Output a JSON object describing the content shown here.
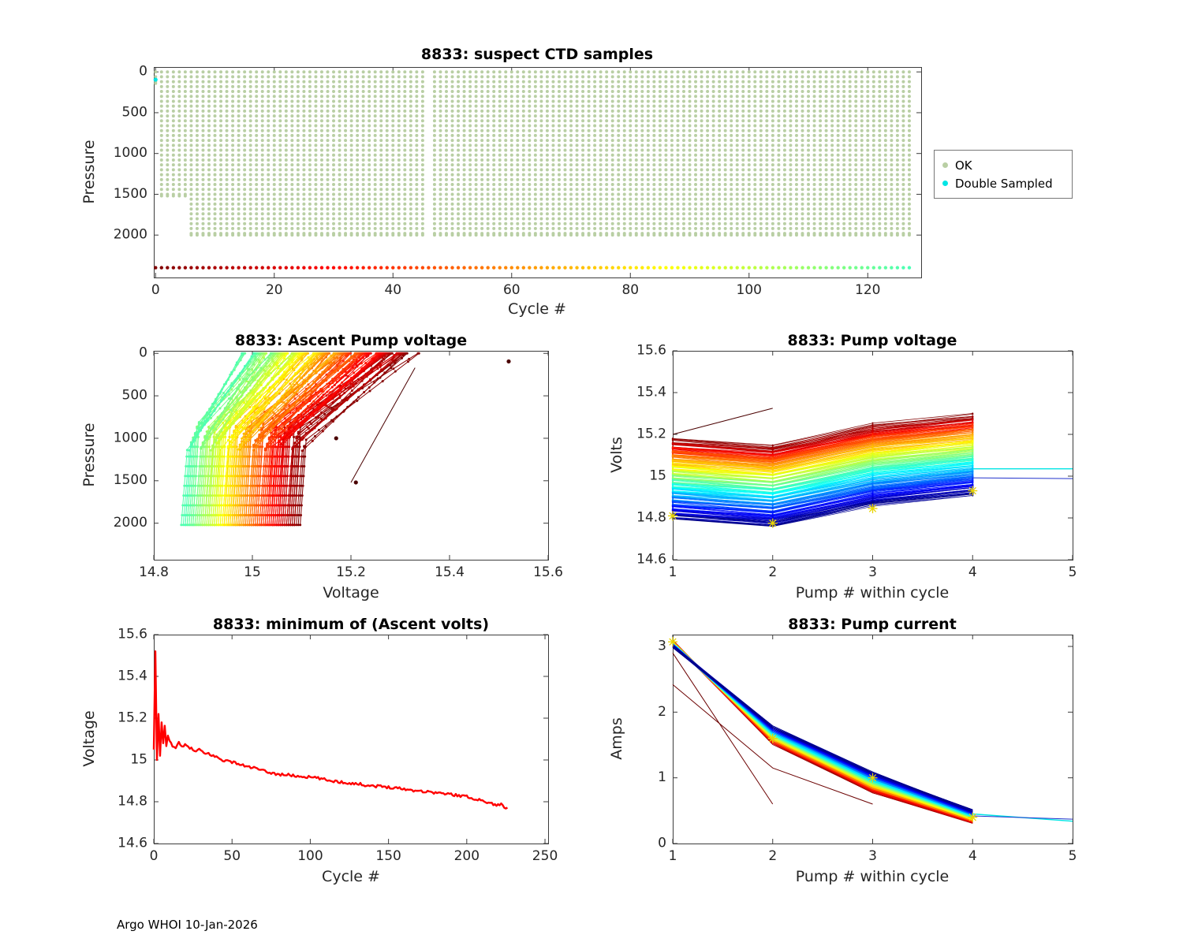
{
  "footer": "Argo WHOI 10-Jan-2026",
  "style": {
    "background": "#ffffff",
    "axis_color": "#3c3c3c",
    "tick_text_color": "#262626",
    "colormap": "jet-reversed",
    "total_cycles_for_colormap": 230
  },
  "chart_data": [
    {
      "type": "scatter",
      "title": "8833: suspect CTD samples",
      "xlabel": "Cycle #",
      "ylabel": "Pressure",
      "xlim": [
        -0.3,
        129
      ],
      "ylim_top_bottom": [
        -60,
        2520
      ],
      "xticks": [
        0,
        20,
        40,
        60,
        80,
        100,
        120
      ],
      "yticks": [
        0,
        500,
        1000,
        1500,
        2000
      ],
      "legend": {
        "position": "right-outside",
        "items": [
          {
            "label": "OK",
            "color": "#b9cfa4"
          },
          {
            "label": "Double Sampled",
            "color": "#00e5e5"
          }
        ]
      },
      "ok_profiles": {
        "cycle_start": 0,
        "cycle_end": 127,
        "missing_cycles": [
          46
        ],
        "pressure_top": 0,
        "pressure_bottom_default": 2000,
        "shallow": {
          "0": 140,
          "1": 1520,
          "2": 1520,
          "3": 1520,
          "4": 1520,
          "5": 1520
        },
        "color": "#b9cfa4"
      },
      "double_sampled_points": [
        [
          0,
          95
        ]
      ],
      "cycle_color_row": {
        "pressure": 2400,
        "cycle_start": 0,
        "cycle_end": 127
      }
    },
    {
      "type": "line",
      "title": "8833: Ascent Pump voltage",
      "xlabel": "Voltage",
      "ylabel": "Pressure",
      "xlim": [
        14.8,
        15.6
      ],
      "ylim_top_bottom": [
        -30,
        2430
      ],
      "xticks": [
        14.8,
        15,
        15.2,
        15.4,
        15.6
      ],
      "yticks": [
        0,
        500,
        1000,
        1500,
        2000
      ],
      "profile_lines": {
        "count": 128,
        "pressure_bottom": 2020,
        "knee_pressure_range": [
          800,
          1150
        ],
        "bottom_voltage_first_to_last": [
          15.09,
          14.86
        ],
        "top_voltage_first_to_last": [
          15.32,
          14.99
        ],
        "marker_pressure_step": 115
      },
      "outlier_color": "#4a0000",
      "outlier_points": [
        [
          15.52,
          95
        ],
        [
          15.21,
          1520
        ],
        [
          15.17,
          1000
        ]
      ],
      "outlier_lines": [
        [
          [
            15.2,
            1520
          ],
          [
            15.33,
            170
          ]
        ]
      ]
    },
    {
      "type": "line",
      "title": "8833: Pump voltage",
      "xlabel": "Pump # within cycle",
      "ylabel": "Volts",
      "xlim": [
        1,
        5
      ],
      "ylim_top_bottom": [
        15.6,
        14.6
      ],
      "xticks": [
        1,
        2,
        3,
        4,
        5
      ],
      "yticks": [
        14.6,
        14.8,
        15,
        15.2,
        15.4,
        15.6
      ],
      "cycle_lines": {
        "count": 230,
        "x": [
          1,
          2,
          3,
          4
        ],
        "first_cycle_start_volts": 15.18,
        "last_cycle_start_volts": 14.8,
        "deltas_by_pump": [
          0,
          -0.035,
          0.065,
          0.115
        ],
        "noise": 0.012
      },
      "extra_lines": [
        {
          "points": [
            [
              4,
              15.035
            ],
            [
              5,
              15.035
            ]
          ],
          "color": "#00e5e5",
          "width": 1.4
        },
        {
          "points": [
            [
              4,
              14.992
            ],
            [
              5,
              14.988
            ]
          ],
          "color": "#2233cc",
          "width": 1
        },
        {
          "points": [
            [
              1,
              15.2
            ],
            [
              2,
              15.325
            ]
          ],
          "color": "#4a0000",
          "width": 1
        }
      ],
      "star_markers": {
        "color": "#e8d400",
        "points": [
          [
            1,
            14.81
          ],
          [
            2,
            14.775
          ],
          [
            3,
            14.845
          ],
          [
            4,
            14.93
          ]
        ]
      }
    },
    {
      "type": "line",
      "title": "8833: minimum of (Ascent volts)",
      "xlabel": "Cycle #",
      "ylabel": "Voltage",
      "xlim": [
        0,
        252
      ],
      "ylim_top_bottom": [
        15.6,
        14.6
      ],
      "xticks": [
        0,
        50,
        100,
        150,
        200,
        250
      ],
      "yticks": [
        14.6,
        14.8,
        15,
        15.2,
        15.4,
        15.6
      ],
      "color": "#ff0000",
      "line_width": 2.4,
      "points": [
        [
          0,
          15.05
        ],
        [
          1,
          15.52
        ],
        [
          2,
          15.0
        ],
        [
          3,
          15.22
        ],
        [
          4,
          15.02
        ],
        [
          5,
          15.18
        ],
        [
          6,
          15.08
        ],
        [
          7,
          15.16
        ],
        [
          8,
          15.06
        ],
        [
          9,
          15.12
        ],
        [
          10,
          15.09
        ],
        [
          12,
          15.07
        ],
        [
          14,
          15.06
        ],
        [
          16,
          15.08
        ],
        [
          18,
          15.06
        ],
        [
          20,
          15.07
        ],
        [
          23,
          15.06
        ],
        [
          26,
          15.04
        ],
        [
          29,
          15.05
        ],
        [
          32,
          15.03
        ],
        [
          35,
          15.03
        ],
        [
          38,
          15.02
        ],
        [
          41,
          15.01
        ],
        [
          44,
          15.0
        ],
        [
          47,
          14.995
        ],
        [
          50,
          14.99
        ],
        [
          53,
          14.985
        ],
        [
          56,
          14.975
        ],
        [
          59,
          14.97
        ],
        [
          62,
          14.965
        ],
        [
          65,
          14.96
        ],
        [
          68,
          14.952
        ],
        [
          71,
          14.945
        ],
        [
          74,
          14.94
        ],
        [
          77,
          14.935
        ],
        [
          80,
          14.93
        ],
        [
          84,
          14.93
        ],
        [
          88,
          14.926
        ],
        [
          92,
          14.922
        ],
        [
          96,
          14.92
        ],
        [
          100,
          14.917
        ],
        [
          104,
          14.914
        ],
        [
          108,
          14.908
        ],
        [
          112,
          14.902
        ],
        [
          116,
          14.898
        ],
        [
          120,
          14.894
        ],
        [
          124,
          14.89
        ],
        [
          128,
          14.887
        ],
        [
          132,
          14.884
        ],
        [
          136,
          14.879
        ],
        [
          140,
          14.876
        ],
        [
          144,
          14.874
        ],
        [
          148,
          14.871
        ],
        [
          152,
          14.869
        ],
        [
          156,
          14.866
        ],
        [
          160,
          14.861
        ],
        [
          164,
          14.856
        ],
        [
          168,
          14.854
        ],
        [
          172,
          14.85
        ],
        [
          176,
          14.847
        ],
        [
          180,
          14.844
        ],
        [
          184,
          14.84
        ],
        [
          188,
          14.837
        ],
        [
          192,
          14.833
        ],
        [
          196,
          14.829
        ],
        [
          200,
          14.824
        ],
        [
          204,
          14.817
        ],
        [
          208,
          14.809
        ],
        [
          212,
          14.8
        ],
        [
          214,
          14.796
        ],
        [
          216,
          14.791
        ],
        [
          218,
          14.787
        ],
        [
          220,
          14.782
        ],
        [
          222,
          14.789
        ],
        [
          224,
          14.776
        ],
        [
          226,
          14.772
        ]
      ]
    },
    {
      "type": "line",
      "title": "8833: Pump current",
      "xlabel": "Pump # within cycle",
      "ylabel": "Amps",
      "xlim": [
        1,
        5
      ],
      "ylim_top_bottom": [
        3.18,
        0
      ],
      "xticks": [
        1,
        2,
        3,
        4,
        5
      ],
      "yticks": [
        0,
        1,
        2,
        3
      ],
      "cycle_lines": {
        "count": 230,
        "x": [
          1,
          2,
          3,
          4
        ],
        "first_cycle_amps": [
          3.08,
          1.52,
          0.78,
          0.32
        ],
        "last_cycle_amps": [
          3.0,
          1.78,
          1.08,
          0.5
        ],
        "noise": 0.05
      },
      "extra_lines": [
        {
          "points": [
            [
              4,
              0.45
            ],
            [
              5,
              0.34
            ]
          ],
          "color": "#00e5e5",
          "width": 1.4
        },
        {
          "points": [
            [
              4,
              0.42
            ],
            [
              5,
              0.37
            ]
          ],
          "color": "#2233cc",
          "width": 1
        }
      ],
      "outlier_lines": {
        "color": "#6b0000",
        "width": 1,
        "lines": [
          [
            [
              1,
              2.9
            ],
            [
              2,
              0.6
            ]
          ],
          [
            [
              1,
              2.42
            ],
            [
              2,
              1.15
            ],
            [
              3,
              0.6
            ]
          ]
        ]
      },
      "star_markers": {
        "color": "#e8d400",
        "points": [
          [
            1,
            3.07
          ],
          [
            2,
            1.6
          ],
          [
            3,
            1.0
          ],
          [
            4,
            0.4
          ]
        ]
      }
    }
  ]
}
